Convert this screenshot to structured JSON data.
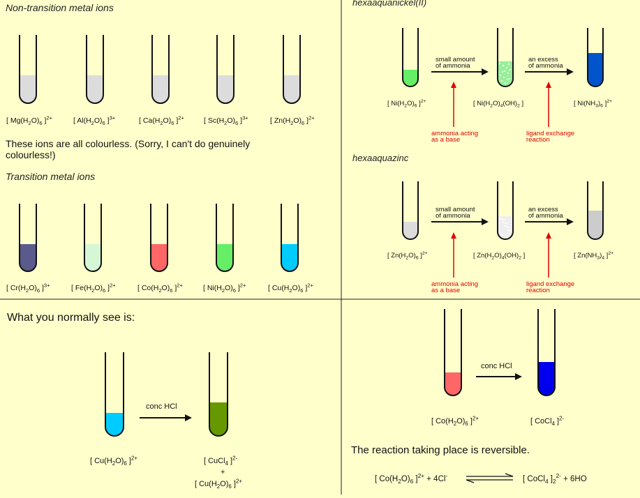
{
  "colors": {
    "background": "#ffffcc",
    "colourless": "#dcdcdc",
    "cr": "#5a5a8c",
    "fe": "#d6f7d6",
    "co": "#ff6666",
    "ni": "#66ee66",
    "cu": "#00ccff",
    "ni_precip": "#99ee99",
    "ni_amine": "#0055cc",
    "zn_precip": "#eeeeee",
    "zn_amine": "#cccccc",
    "cucl4": "#669900",
    "cocl4": "#0000ee",
    "annotation": "#e00000"
  },
  "panel1": {
    "heading1": "Non-transition metal ions",
    "ions1": [
      {
        "pre": "[ Mg(H",
        "s1": "2",
        "mid": "O)",
        "s2": "6",
        "post": " ]",
        "charge": "2+"
      },
      {
        "pre": "[ Al(H",
        "s1": "2",
        "mid": "O)",
        "s2": "6",
        "post": " ]",
        "charge": "3+"
      },
      {
        "pre": "[ Ca(H",
        "s1": "2",
        "mid": "O)",
        "s2": "6",
        "post": " ]",
        "charge": "2+"
      },
      {
        "pre": "[ Sc(H",
        "s1": "2",
        "mid": "O)",
        "s2": "6",
        "post": " ]",
        "charge": "3+"
      },
      {
        "pre": "[ Zn(H",
        "s1": "2",
        "mid": "O)",
        "s2": "6",
        "post": " ]",
        "charge": "2+"
      }
    ],
    "note_line1": "These ions are all colourless. (Sorry, I can't do genuinely",
    "note_line2": "colourless!)",
    "heading2": "Transition metal ions",
    "ions2": [
      {
        "pre": "[ Cr(H",
        "s1": "2",
        "mid": "O)",
        "s2": "6",
        "post": " ]",
        "charge": "3+"
      },
      {
        "pre": "[ Fe(H",
        "s1": "2",
        "mid": "O)",
        "s2": "6",
        "post": " ]",
        "charge": "2+"
      },
      {
        "pre": "[ Co(H",
        "s1": "2",
        "mid": "O)",
        "s2": "6",
        "post": " ]",
        "charge": "2+"
      },
      {
        "pre": "[ Ni(H",
        "s1": "2",
        "mid": "O)",
        "s2": "6",
        "post": " ]",
        "charge": "2+"
      },
      {
        "pre": "[ Cu(H",
        "s1": "2",
        "mid": "O)",
        "s2": "6",
        "post": " ]",
        "charge": "2+"
      }
    ]
  },
  "panel2": {
    "heading_ni": "hexaaquanickel(II)",
    "heading_zn": "hexaaquazinc",
    "small_amount_1": "small amount",
    "small_amount_2": "of ammonia",
    "excess_1": "an excess",
    "excess_2": "of ammonia",
    "base_1": "ammonia acting",
    "base_2": "as a base",
    "ligand_1": "ligand exchange",
    "ligand_2": "reaction",
    "ni_labels": [
      {
        "pre": "[ Ni(H",
        "s1": "2",
        "mid": "O)",
        "s2": "6",
        "post": " ]",
        "charge": "2+"
      },
      {
        "pre": "[ Ni(H",
        "s1": "2",
        "mid": "O)",
        "s2": "4",
        "post": "(OH)",
        "s3": "2",
        "post2": " ]"
      },
      {
        "pre": "[ Ni(NH",
        "s1": "3",
        "mid": ")",
        "s2": "6",
        "post": " ]",
        "charge": "2+"
      }
    ],
    "zn_labels": [
      {
        "pre": "[ Zn(H",
        "s1": "2",
        "mid": "O)",
        "s2": "6",
        "post": " ]",
        "charge": "2+"
      },
      {
        "pre": "[ Zn(H",
        "s1": "2",
        "mid": "O)",
        "s2": "4",
        "post": "(OH)",
        "s3": "2",
        "post2": " ]"
      },
      {
        "pre": "[ Zn(NH",
        "s1": "3",
        "mid": ")",
        "s2": "4",
        "post": " ]",
        "charge": "2+"
      }
    ]
  },
  "panel3": {
    "heading": "What you normally see is:",
    "reagent": "conc HCl",
    "reactant": {
      "pre": "[ Cu(H",
      "s1": "2",
      "mid": "O)",
      "s2": "6",
      "post": " ]",
      "charge": "2+"
    },
    "product": {
      "pre": "[ CuCl",
      "s1": "4",
      "post": " ]",
      "charge": "2-"
    },
    "plus": "+",
    "product2": {
      "pre": "[ Cu(H",
      "s1": "2",
      "mid": "O)",
      "s2": "6",
      "post": " ]",
      "charge": "2+"
    }
  },
  "panel4": {
    "reagent": "conc HCl",
    "reactant": {
      "pre": "[ Co(H",
      "s1": "2",
      "mid": "O)",
      "s2": "6",
      "post": " ]",
      "charge": "2+"
    },
    "product": {
      "pre": "[ CoCl",
      "s1": "4",
      "post": " ]",
      "charge": "2-"
    },
    "statement": "The reaction taking place is reversible.",
    "eq_left": {
      "pre": "[ Co(H",
      "s1": "2",
      "mid": "O)",
      "s2": "6",
      "post": " ]",
      "charge": "2+",
      "post2": " + 4Cl",
      "charge2": "-"
    },
    "eq_right": {
      "pre": "[ CoCl",
      "s1": "4",
      "post": " ]",
      "charge": "2-",
      "post2": " + 6H",
      "s3": "2",
      "post3": "O"
    }
  }
}
